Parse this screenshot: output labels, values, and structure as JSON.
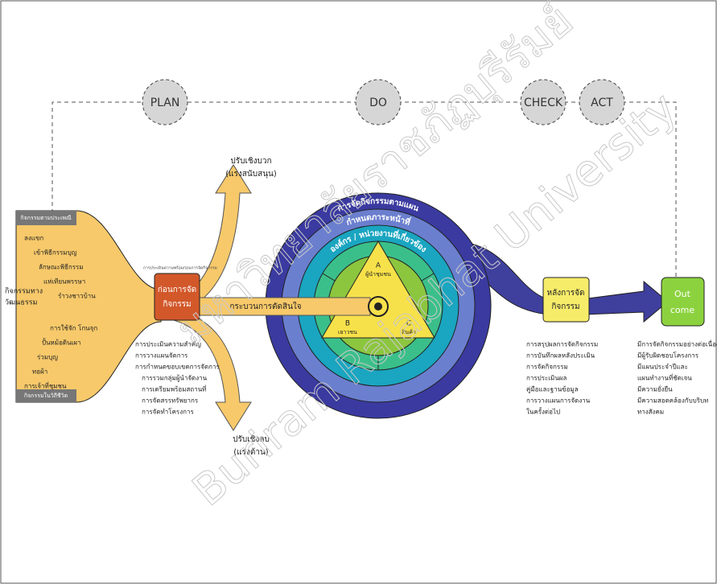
{
  "phases": [
    "PLAN",
    "DO",
    "CHECK",
    "ACT"
  ],
  "left": {
    "title": [
      "กิจกรรมทาง",
      "วัฒนธรรม"
    ],
    "top_label": "กิจกรรมตามประเพณี",
    "bottom_label": "กิจกรรมในวิถีชีวิต",
    "items": [
      "ลงแขก",
      "เข้าพิธีกรรมบุญ",
      "ลักษณะพิธีกรรม",
      "แห่เทียนพรรษา",
      "รำวงชาวบ้าน",
      "การใช้จัก โกนจุก",
      "ปั้นหม้อดินเผา",
      "ร่วมบุญ",
      "ทอผ้า",
      "การเจ้าที่ชุมชน"
    ]
  },
  "forces": {
    "positive": [
      "ปรับเชิงบวก",
      "(แรงสนับสนุน)"
    ],
    "negative": [
      "ปรับเชิงลบ",
      "(แรงต้าน)"
    ]
  },
  "before": {
    "title": [
      "ก่อนการจัด",
      "กิจกรรม"
    ],
    "note": "การประเมินความพร้อมก่อนการจัดกิจกรรม",
    "items": [
      "การประเมินความสำคัญ",
      "การวางแผนจัดการ",
      "การกำหนดขอบเขตการจัดการ"
    ],
    "subitems": [
      "การรวมกลุ่มผู้นำจัดงาน",
      "การเตรียมพร้อมสถานที่",
      "การจัดสรรทรัพยากร",
      "การจัดทำโครงการ"
    ]
  },
  "decision": "กระบวนการตัดสินใจ",
  "rings": [
    "การจัดกิจกรรมตามแผน",
    "กำหนดภาระหน้าที่",
    "องค์กร / หน่วยงานที่เกี่ยวข้อง"
  ],
  "core": [
    {
      "letter": "A",
      "label": "ผู้นำชุมชน"
    },
    {
      "letter": "B",
      "label": "เยาวชน"
    },
    {
      "letter": "C",
      "label": "สินค้า"
    }
  ],
  "after": {
    "title": [
      "หลังการจัด",
      "กิจกรรม"
    ],
    "items": [
      "การสรุปผลการจัดกิจกรรม",
      "การบันทึกผลหลังประเมิน",
      "การจัดกิจกรรม",
      "การประเมินผล",
      "คู่มือและฐานข้อมูล",
      "การวางแผนการจัดงาน",
      "ในครั้งต่อไป"
    ]
  },
  "outcome": {
    "title": [
      "Out",
      "come"
    ],
    "items": [
      "มีการจัดกิจกรรมอย่างต่อเนื่อง",
      "มีผู้รับผิดชอบโครงการ",
      "มีแผนประจำปีและ",
      "แผนทำงานที่ชัดเจน",
      "มีความยั่งยืน",
      "มีความสอดคล้องกับบริบท",
      "ทางสังคม"
    ]
  },
  "watermark": [
    "มหาวิทยาลัยราชภัฏบุรีรัมย์",
    "Buriram Rajabhat University"
  ]
}
